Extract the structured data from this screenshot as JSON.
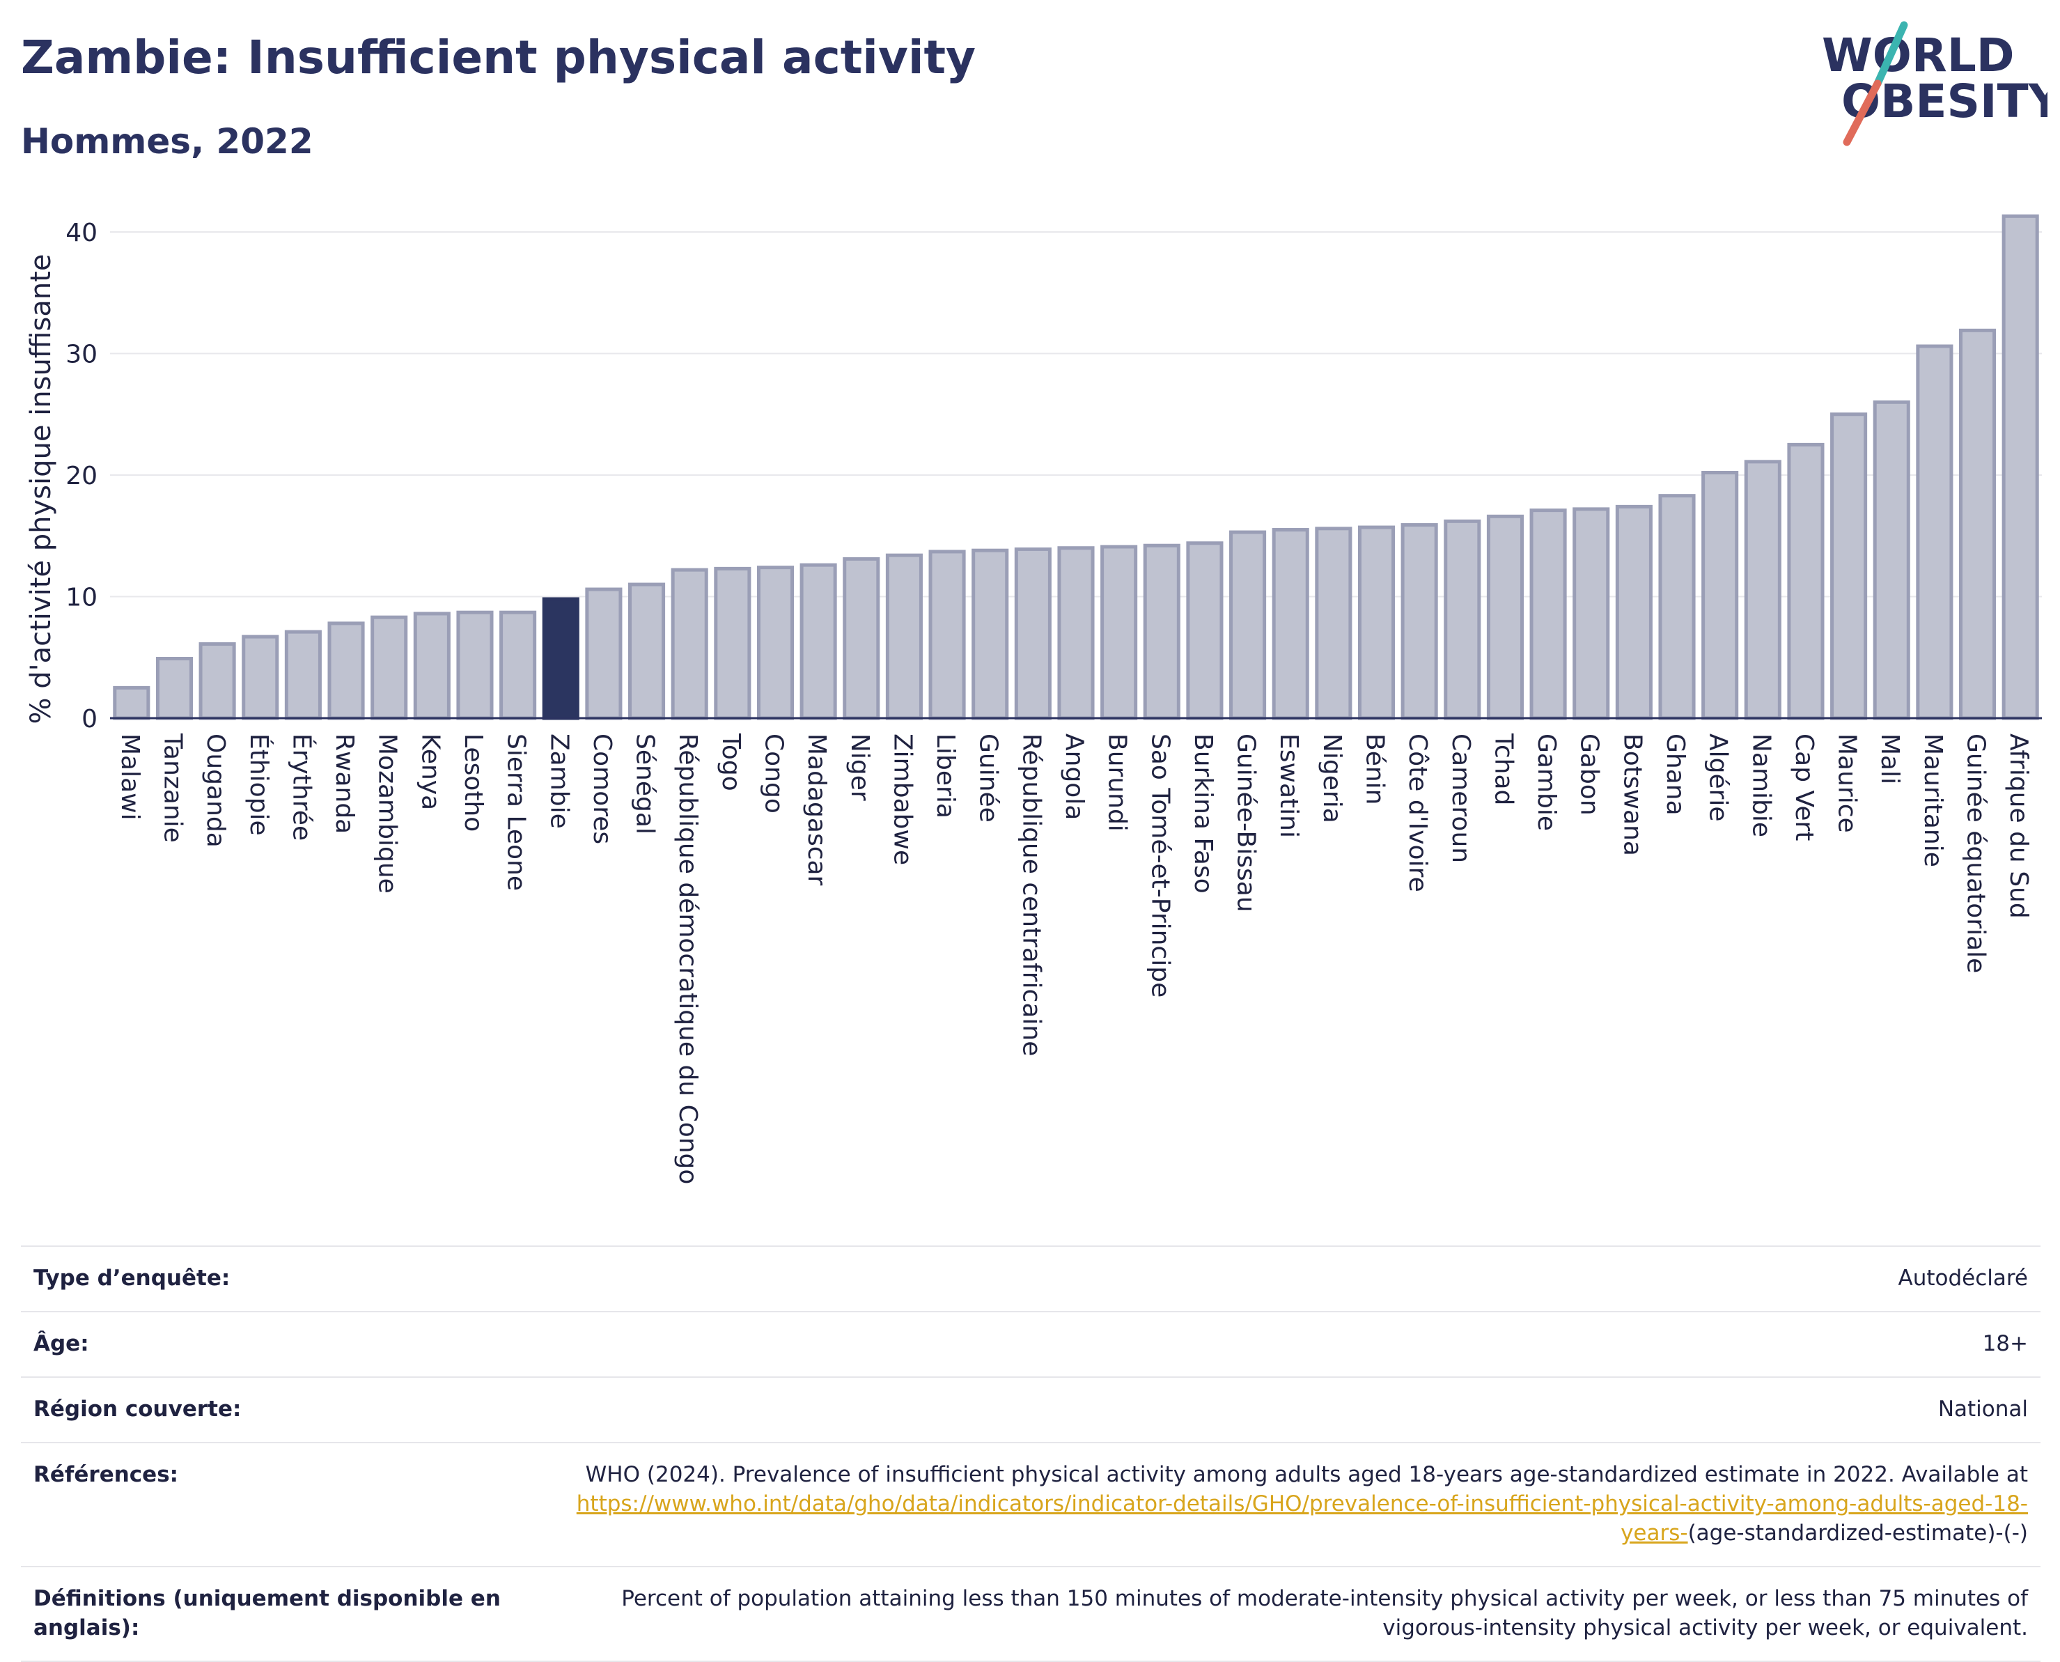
{
  "header": {
    "title": "Zambie: Insufficient physical activity",
    "subtitle": "Hommes, 2022"
  },
  "logo": {
    "line1": "WORLD",
    "line2": "OBESITY"
  },
  "colors": {
    "bar_default": "#bfc2d0",
    "bar_default_stroke": "#9a9eb6",
    "bar_highlight": "#2b3560",
    "text": "#1f2240",
    "title": "#2b3260",
    "grid": "#e8e8ec",
    "logo_slash_teal": "#3bb4b0",
    "logo_slash_red": "#e06b5a",
    "link": "#d8a51c"
  },
  "chart_data": {
    "type": "bar",
    "ylabel": "% d'activité physique insuffisante",
    "ylim": [
      0,
      42
    ],
    "yticks": [
      0,
      10,
      20,
      30,
      40
    ],
    "grid": true,
    "highlight": "Zambie",
    "categories": [
      "Malawi",
      "Tanzanie",
      "Ouganda",
      "Éthiopie",
      "Érythrée",
      "Rwanda",
      "Mozambique",
      "Kenya",
      "Lesotho",
      "Sierra Leone",
      "Zambie",
      "Comores",
      "Sénégal",
      "République démocratique du Congo",
      "Togo",
      "Congo",
      "Madagascar",
      "Niger",
      "Zimbabwe",
      "Liberia",
      "Guinée",
      "République centrafricaine",
      "Angola",
      "Burundi",
      "Sao Tomé-et-Principe",
      "Burkina Faso",
      "Guinée-Bissau",
      "Eswatini",
      "Nigeria",
      "Bénin",
      "Côte d'Ivoire",
      "Cameroun",
      "Tchad",
      "Gambie",
      "Gabon",
      "Botswana",
      "Ghana",
      "Algérie",
      "Namibie",
      "Cap Vert",
      "Maurice",
      "Mali",
      "Mauritanie",
      "Guinée équatoriale",
      "Afrique du Sud"
    ],
    "values": [
      2.5,
      4.9,
      6.1,
      6.7,
      7.1,
      7.8,
      8.3,
      8.6,
      8.7,
      8.7,
      9.8,
      10.6,
      11.0,
      12.2,
      12.3,
      12.4,
      12.6,
      13.1,
      13.4,
      13.7,
      13.8,
      13.9,
      14.0,
      14.1,
      14.2,
      14.4,
      15.3,
      15.5,
      15.6,
      15.7,
      15.9,
      16.2,
      16.6,
      17.1,
      17.2,
      17.4,
      18.3,
      20.2,
      21.1,
      22.5,
      25.0,
      26.0,
      30.6,
      31.9,
      41.3
    ]
  },
  "meta": {
    "rows": [
      {
        "label": "Type d’enquête:",
        "value": "Autodéclaré"
      },
      {
        "label": "Âge:",
        "value": "18+"
      },
      {
        "label": "Région couverte:",
        "value": "National"
      }
    ],
    "references": {
      "label": "Références:",
      "text": "WHO (2024). Prevalence of insufficient physical activity among adults aged 18-years age-standardized estimate in 2022. Available at",
      "link": "https://www.who.int/data/gho/data/indicators/indicator-details/GHO/prevalence-of-insufficient-physical-activity-among-adults-aged-18-years-",
      "suffix": "(age-standardized-estimate)-(-)"
    },
    "definitions": {
      "label": "Définitions (uniquement disponible en anglais):",
      "value": "Percent of population attaining less than 150 minutes of moderate-intensity physical activity per week, or less than 75 minutes of vigorous-intensity physical activity per week, or equivalent."
    }
  }
}
